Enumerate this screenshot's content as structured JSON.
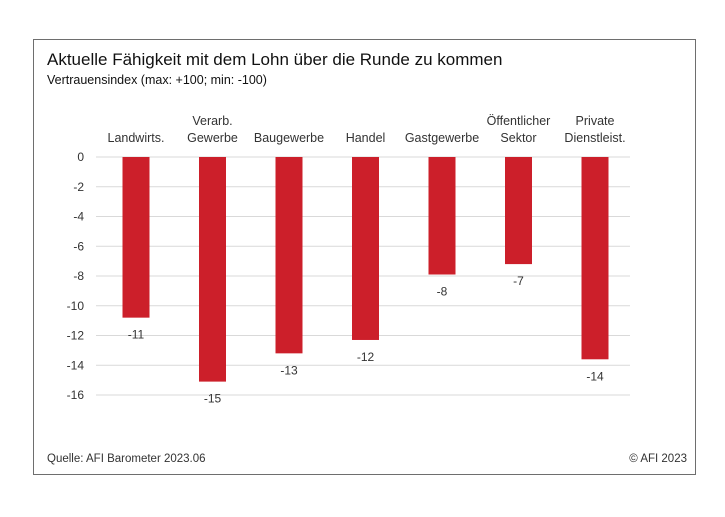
{
  "title": "Aktuelle Fähigkeit mit dem Lohn über die Runde zu kommen",
  "subtitle": "Vertrauensindex (max: +100; min: -100)",
  "source": "Quelle: AFI Barometer 2023.06",
  "copyright": "© AFI 2023",
  "chart_data": {
    "type": "bar",
    "categories": [
      [
        "Landwirts."
      ],
      [
        "Verarb.",
        "Gewerbe"
      ],
      [
        "Baugewerbe"
      ],
      [
        "Handel"
      ],
      [
        "Gastgewerbe"
      ],
      [
        "Öffentlicher",
        "Sektor"
      ],
      [
        "Private",
        "Dienstleist."
      ]
    ],
    "values": [
      -10.8,
      -15.1,
      -13.2,
      -12.3,
      -7.9,
      -7.2,
      -13.6
    ],
    "data_labels": [
      "-11",
      "-15",
      "-13",
      "-12",
      "-8",
      "-7",
      "-14"
    ],
    "yticks": [
      0,
      -2,
      -4,
      -6,
      -8,
      -10,
      -12,
      -14,
      -16
    ],
    "ylim": [
      -16,
      0
    ],
    "bar_color": "#cc1f2a",
    "grid": true,
    "category_labels_position": "top"
  }
}
